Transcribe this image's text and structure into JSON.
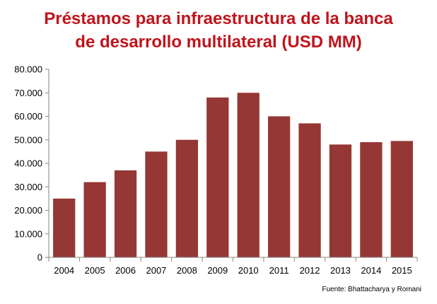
{
  "chart_data": {
    "type": "bar",
    "title_lines": [
      "Préstamos para infraestructura de la banca",
      "de desarrollo multilateral (USD MM)"
    ],
    "categories": [
      "2004",
      "2005",
      "2006",
      "2007",
      "2008",
      "2009",
      "2010",
      "2011",
      "2012",
      "2013",
      "2014",
      "2015"
    ],
    "values": [
      25000,
      32000,
      37000,
      45000,
      50000,
      68000,
      70000,
      60000,
      57000,
      48000,
      49000,
      49500
    ],
    "ylim": [
      0,
      80000
    ],
    "yticks": [
      "0",
      "10.000",
      "20.000",
      "30.000",
      "40.000",
      "50.000",
      "60.000",
      "70.000",
      "80.000"
    ],
    "ytick_values": [
      0,
      10000,
      20000,
      30000,
      40000,
      50000,
      60000,
      70000,
      80000
    ],
    "grid": false,
    "bar_color": "#953735",
    "axis_color": "#868686",
    "source": "Fuente: Bhattacharya y Romani"
  }
}
